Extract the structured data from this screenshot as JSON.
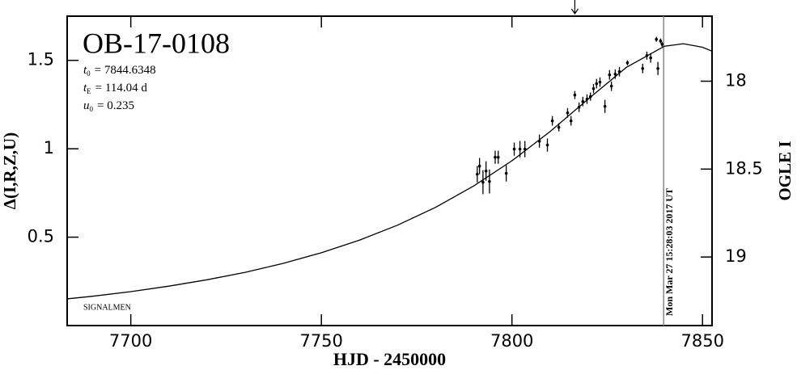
{
  "chart_data": {
    "type": "lightcurve",
    "title": "OB-17-0108",
    "params": [
      {
        "symbol": "t",
        "sub": "0",
        "text": "= 7844.6348"
      },
      {
        "symbol": "t",
        "sub": "E",
        "text": "= 114.04 d"
      },
      {
        "symbol": "u",
        "sub": "0",
        "text": "= 0.235"
      }
    ],
    "footnote": "SIGNALMEN",
    "xlabel": "HJD - 2450000",
    "ylabel": "Δ(I,R,Z,U)",
    "y2label": "OGLE I",
    "xlim": [
      7683.3,
      7852.5
    ],
    "ylim": [
      0,
      1.75
    ],
    "y2lim": [
      19.39,
      17.63
    ],
    "xticks": [
      7700,
      7750,
      7800,
      7850
    ],
    "yticks": [
      0.5,
      1,
      1.5
    ],
    "y2ticks": [
      18,
      18.5,
      19
    ],
    "model": {
      "x": [
        7683.3,
        7690,
        7700,
        7710,
        7720,
        7730,
        7740,
        7750,
        7760,
        7770,
        7780,
        7790,
        7800,
        7810,
        7820,
        7830,
        7840,
        7845,
        7850,
        7852.5
      ],
      "values": [
        0.151,
        0.166,
        0.192,
        0.223,
        0.259,
        0.301,
        0.352,
        0.412,
        0.483,
        0.568,
        0.669,
        0.79,
        0.932,
        1.097,
        1.281,
        1.46,
        1.58,
        1.594,
        1.574,
        1.552
      ]
    },
    "points": {
      "x": [
        7790.9,
        7791.5,
        7792.4,
        7793.2,
        7794.1,
        7795.6,
        7796.4,
        7798.5,
        7800.6,
        7802.1,
        7803.4,
        7807.2,
        7809.3,
        7810.6,
        7812.3,
        7814.6,
        7815.5,
        7816.5,
        7817.6,
        7818.6,
        7819.7,
        7820.6,
        7821.4,
        7822.2,
        7823.1,
        7824.4,
        7825.6,
        7826.1,
        7827.1,
        7828.2,
        7830.3,
        7834.3,
        7835.4,
        7836.4,
        7837.9,
        7838.3,
        7839.0,
        7839.4
      ],
      "values": [
        0.856,
        0.902,
        0.811,
        0.874,
        0.815,
        0.952,
        0.952,
        0.861,
        0.998,
        0.998,
        0.998,
        1.043,
        1.021,
        1.158,
        1.121,
        1.203,
        1.158,
        1.304,
        1.235,
        1.267,
        1.281,
        1.295,
        1.34,
        1.368,
        1.377,
        1.24,
        1.418,
        1.354,
        1.422,
        1.436,
        1.486,
        1.454,
        1.527,
        1.514,
        1.619,
        1.454,
        1.61,
        1.591
      ],
      "errors": [
        0.046,
        0.046,
        0.068,
        0.055,
        0.068,
        0.037,
        0.037,
        0.046,
        0.037,
        0.046,
        0.046,
        0.037,
        0.037,
        0.027,
        0.023,
        0.027,
        0.027,
        0.023,
        0.027,
        0.027,
        0.027,
        0.023,
        0.027,
        0.027,
        0.027,
        0.037,
        0.027,
        0.027,
        0.027,
        0.027,
        0.014,
        0.027,
        0.023,
        0.027,
        0.014,
        0.037,
        0.014,
        0.014
      ]
    },
    "now_line": {
      "x": 7839.8,
      "label": "Mon Mar 27 15:28:03 2017 UT",
      "color": "#888888"
    },
    "arrow_x": 7816.5
  }
}
